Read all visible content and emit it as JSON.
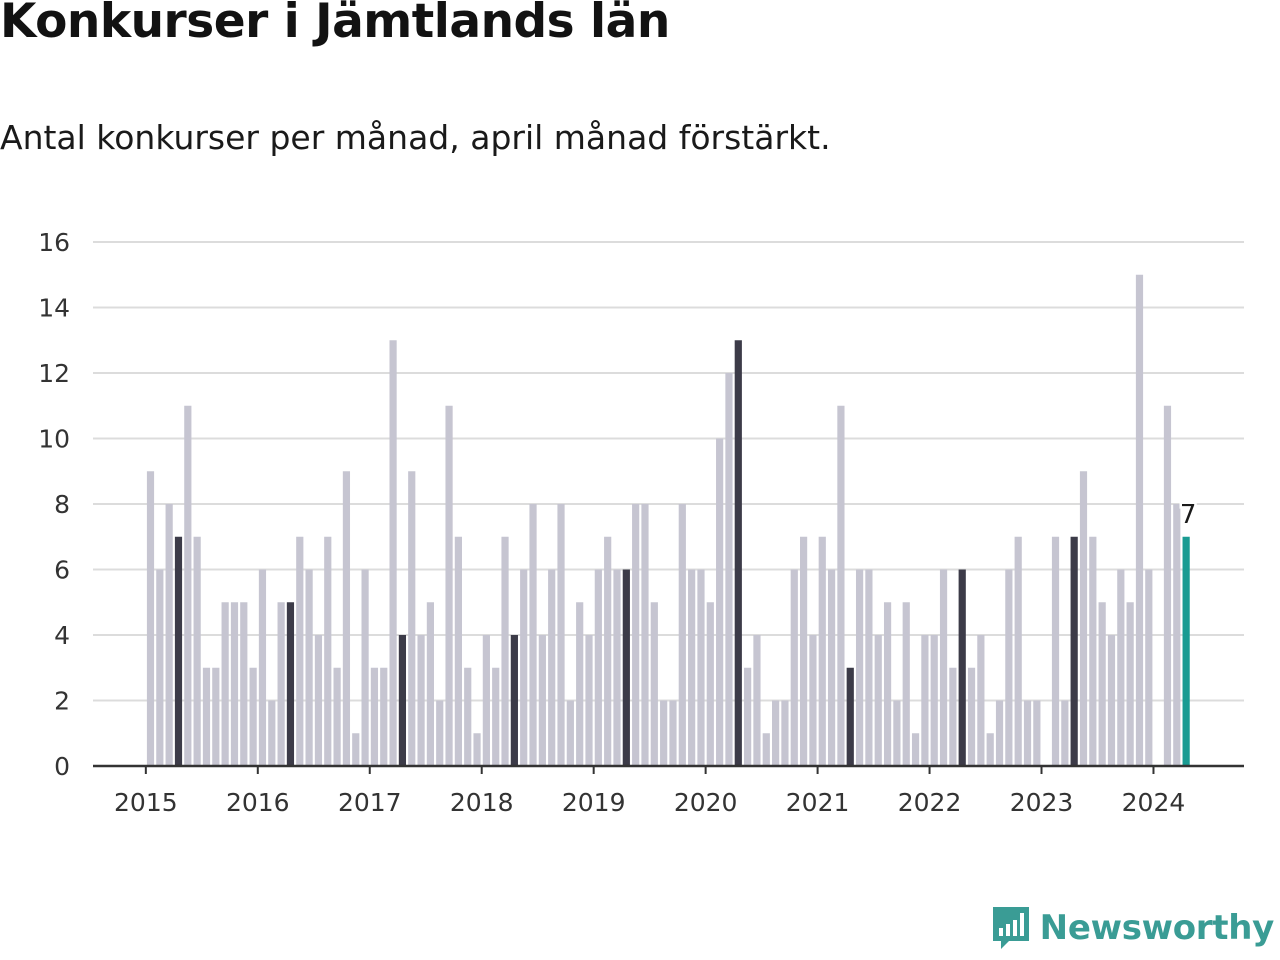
{
  "title": "Konkurser i Jämtlands län",
  "subtitle": "Antal konkurser per månad, april månad förstärkt.",
  "brand": {
    "name": "Newsworthy"
  },
  "colors": {
    "bar_default": "#c6c5d1",
    "bar_highlight_april": "#3c3b48",
    "bar_latest": "#199b92",
    "gridline": "#dcdcdc",
    "axis": "#333333",
    "brand": "#3a9c95"
  },
  "chart_data": {
    "type": "bar",
    "title": "Konkurser i Jämtlands län",
    "subtitle": "Antal konkurser per månad, april månad förstärkt.",
    "xlabel": "",
    "ylabel": "",
    "ylim": [
      0,
      16
    ],
    "yticks": [
      0,
      2,
      4,
      6,
      8,
      10,
      12,
      14,
      16
    ],
    "xtick_labels": [
      "2015",
      "2016",
      "2017",
      "2018",
      "2019",
      "2020",
      "2021",
      "2022",
      "2023",
      "2024"
    ],
    "grid": true,
    "legend": "none",
    "period": "monthly, January 2015 – April 2024",
    "highlight": "April of each year",
    "latest_label": "7",
    "series": [
      {
        "values_by_year": {
          "2015": [
            9,
            6,
            8,
            7,
            11,
            7,
            3,
            3,
            5,
            5,
            5,
            3
          ],
          "2016": [
            6,
            2,
            5,
            5,
            7,
            6,
            4,
            7,
            3,
            9,
            1,
            6
          ],
          "2017": [
            3,
            3,
            13,
            4,
            9,
            4,
            5,
            2,
            11,
            7,
            3,
            1
          ],
          "2018": [
            4,
            3,
            7,
            4,
            6,
            8,
            4,
            6,
            8,
            2,
            5,
            4
          ],
          "2019": [
            6,
            7,
            6,
            6,
            8,
            8,
            5,
            2,
            2,
            8,
            6,
            6
          ],
          "2020": [
            5,
            10,
            12,
            13,
            3,
            4,
            1,
            2,
            2,
            6,
            7,
            4
          ],
          "2021": [
            7,
            6,
            11,
            3,
            6,
            6,
            4,
            5,
            2,
            5,
            1,
            4
          ],
          "2022": [
            4,
            6,
            3,
            6,
            3,
            4,
            1,
            2,
            6,
            7,
            2,
            2
          ],
          "2023": [
            0,
            7,
            2,
            7,
            9,
            7,
            5,
            4,
            6,
            5,
            15,
            6
          ],
          "2024": [
            0,
            11,
            8,
            7
          ]
        }
      }
    ]
  }
}
